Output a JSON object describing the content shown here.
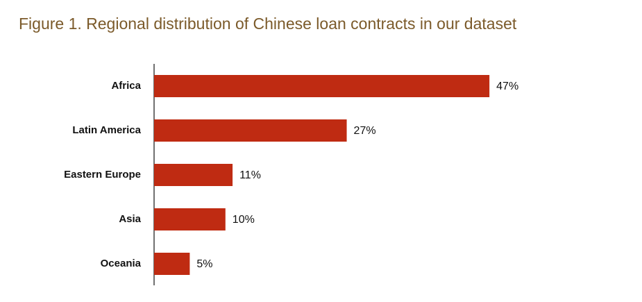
{
  "chart_data": {
    "type": "bar",
    "orientation": "horizontal",
    "title": "Figure 1. Regional distribution of Chinese loan contracts in our dataset",
    "categories": [
      "Africa",
      "Latin America",
      "Eastern Europe",
      "Asia",
      "Oceania"
    ],
    "values": [
      47,
      27,
      11,
      10,
      5
    ],
    "value_labels": [
      "47%",
      "27%",
      "11%",
      "10%",
      "5%"
    ],
    "color": "#bf2b12"
  }
}
